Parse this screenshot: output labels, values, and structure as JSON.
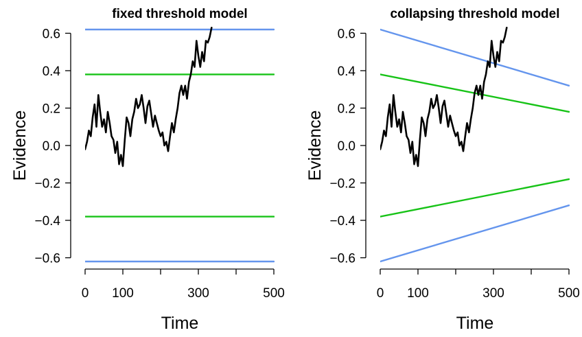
{
  "chart_data": [
    {
      "type": "line",
      "title": "fixed threshold model",
      "xlabel": "Time",
      "ylabel": "Evidence",
      "xlim": [
        0,
        500
      ],
      "ylim": [
        -0.62,
        0.62
      ],
      "x_ticks": [
        0,
        100,
        200,
        300,
        400,
        500
      ],
      "x_tick_labels": [
        "0",
        "100",
        "",
        "300",
        "",
        "500"
      ],
      "y_ticks": [
        -0.6,
        -0.4,
        -0.2,
        0.0,
        0.2,
        0.4,
        0.6
      ],
      "y_tick_labels": [
        "−0.6",
        "−0.4",
        "−0.2",
        "0.0",
        "0.2",
        "0.4",
        "0.6"
      ],
      "grid": false,
      "colors": {
        "blue": "#6495ed",
        "green": "#17c317",
        "evidence": "#000000"
      },
      "series": [
        {
          "color": "blue",
          "x": [
            0,
            500
          ],
          "y": [
            0.62,
            0.62
          ]
        },
        {
          "color": "green",
          "x": [
            0,
            500
          ],
          "y": [
            0.38,
            0.38
          ]
        },
        {
          "color": "green",
          "x": [
            0,
            500
          ],
          "y": [
            -0.38,
            -0.38
          ]
        },
        {
          "color": "blue",
          "x": [
            0,
            500
          ],
          "y": [
            -0.62,
            -0.62
          ]
        },
        {
          "color": "evidence",
          "x": [
            0,
            5,
            10,
            15,
            20,
            25,
            30,
            35,
            40,
            45,
            50,
            55,
            60,
            65,
            70,
            75,
            80,
            85,
            90,
            95,
            100,
            105,
            110,
            115,
            120,
            125,
            130,
            135,
            140,
            145,
            150,
            155,
            160,
            165,
            170,
            175,
            180,
            185,
            190,
            195,
            200,
            205,
            210,
            215,
            220,
            225,
            230,
            235,
            240,
            245,
            250,
            255,
            260,
            265,
            270,
            275,
            280,
            285,
            290,
            295,
            300,
            305,
            310,
            315,
            320,
            325,
            330,
            335
          ],
          "y": [
            -0.02,
            0.02,
            0.08,
            0.05,
            0.15,
            0.22,
            0.1,
            0.27,
            0.18,
            0.1,
            0.14,
            0.07,
            0.18,
            0.12,
            0.05,
            0.03,
            -0.04,
            0.02,
            -0.1,
            -0.05,
            -0.11,
            0.03,
            0.15,
            0.12,
            0.05,
            0.14,
            0.18,
            0.25,
            0.2,
            0.22,
            0.27,
            0.2,
            0.12,
            0.21,
            0.24,
            0.17,
            0.1,
            0.16,
            0.12,
            0.08,
            0.05,
            0.07,
            0.0,
            0.02,
            -0.03,
            0.05,
            0.12,
            0.07,
            0.14,
            0.2,
            0.28,
            0.32,
            0.27,
            0.32,
            0.25,
            0.34,
            0.38,
            0.45,
            0.42,
            0.56,
            0.48,
            0.42,
            0.5,
            0.45,
            0.56,
            0.55,
            0.58,
            0.63
          ]
        }
      ]
    },
    {
      "type": "line",
      "title": "collapsing threshold model",
      "xlabel": "Time",
      "ylabel": "Evidence",
      "xlim": [
        0,
        500
      ],
      "ylim": [
        -0.62,
        0.62
      ],
      "x_ticks": [
        0,
        100,
        200,
        300,
        400,
        500
      ],
      "x_tick_labels": [
        "0",
        "100",
        "",
        "300",
        "",
        "500"
      ],
      "y_ticks": [
        -0.6,
        -0.4,
        -0.2,
        0.0,
        0.2,
        0.4,
        0.6
      ],
      "y_tick_labels": [
        "−0.6",
        "−0.4",
        "−0.2",
        "0.0",
        "0.2",
        "0.4",
        "0.6"
      ],
      "grid": false,
      "colors": {
        "blue": "#6495ed",
        "green": "#17c317",
        "evidence": "#000000"
      },
      "series": [
        {
          "color": "blue",
          "x": [
            0,
            500
          ],
          "y": [
            0.62,
            0.32
          ]
        },
        {
          "color": "green",
          "x": [
            0,
            500
          ],
          "y": [
            0.38,
            0.18
          ]
        },
        {
          "color": "green",
          "x": [
            0,
            500
          ],
          "y": [
            -0.38,
            -0.18
          ]
        },
        {
          "color": "blue",
          "x": [
            0,
            500
          ],
          "y": [
            -0.62,
            -0.32
          ]
        },
        {
          "color": "evidence",
          "x": [
            0,
            5,
            10,
            15,
            20,
            25,
            30,
            35,
            40,
            45,
            50,
            55,
            60,
            65,
            70,
            75,
            80,
            85,
            90,
            95,
            100,
            105,
            110,
            115,
            120,
            125,
            130,
            135,
            140,
            145,
            150,
            155,
            160,
            165,
            170,
            175,
            180,
            185,
            190,
            195,
            200,
            205,
            210,
            215,
            220,
            225,
            230,
            235,
            240,
            245,
            250,
            255,
            260,
            265,
            270,
            275,
            280,
            285,
            290,
            295,
            300,
            305,
            310,
            315,
            320,
            325,
            330,
            335
          ],
          "y": [
            -0.02,
            0.02,
            0.08,
            0.05,
            0.15,
            0.22,
            0.1,
            0.27,
            0.18,
            0.1,
            0.14,
            0.07,
            0.18,
            0.12,
            0.05,
            0.03,
            -0.04,
            0.02,
            -0.1,
            -0.05,
            -0.11,
            0.03,
            0.15,
            0.12,
            0.05,
            0.14,
            0.18,
            0.25,
            0.2,
            0.22,
            0.27,
            0.2,
            0.12,
            0.21,
            0.24,
            0.17,
            0.1,
            0.16,
            0.12,
            0.08,
            0.05,
            0.07,
            0.0,
            0.02,
            -0.03,
            0.05,
            0.12,
            0.07,
            0.14,
            0.2,
            0.28,
            0.32,
            0.27,
            0.32,
            0.25,
            0.34,
            0.38,
            0.45,
            0.42,
            0.56,
            0.48,
            0.42,
            0.5,
            0.45,
            0.56,
            0.55,
            0.58,
            0.63
          ]
        }
      ]
    }
  ]
}
